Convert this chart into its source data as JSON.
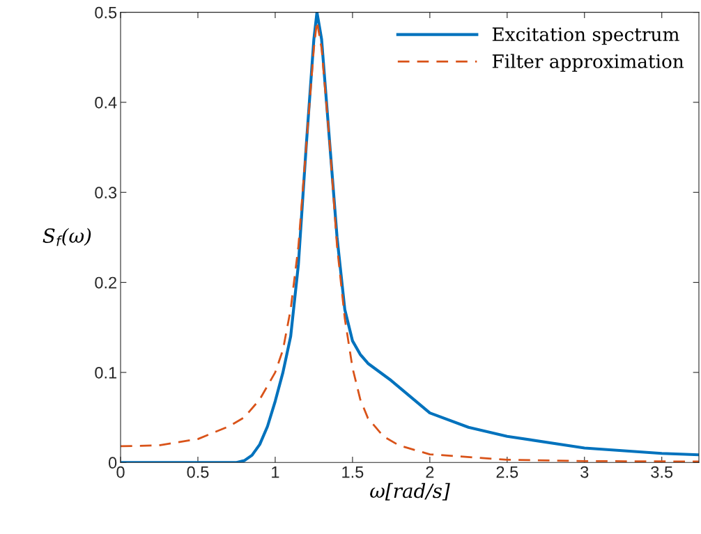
{
  "chart_data": {
    "type": "line",
    "xlabel": "ω[rad/s]",
    "ylabel": "S$_{f}$(ω)",
    "xlim": [
      0,
      3.74
    ],
    "ylim": [
      0,
      0.5
    ],
    "xticks": [
      0,
      0.5,
      1,
      1.5,
      2,
      2.5,
      3,
      3.5
    ],
    "yticks": [
      0,
      0.1,
      0.2,
      0.3,
      0.4,
      0.5
    ],
    "grid": false,
    "legend": "top right",
    "series": [
      {
        "name": "Excitation spectrum",
        "color": "#0072bd",
        "line_style": "solid",
        "x": [
          0,
          0.5,
          0.75,
          0.8,
          0.85,
          0.9,
          0.95,
          1.0,
          1.05,
          1.1,
          1.15,
          1.2,
          1.25,
          1.27,
          1.3,
          1.35,
          1.4,
          1.45,
          1.5,
          1.55,
          1.6,
          1.75,
          2.0,
          2.25,
          2.5,
          3.0,
          3.5,
          3.74
        ],
        "values": [
          0,
          0,
          0,
          0.002,
          0.008,
          0.02,
          0.04,
          0.068,
          0.1,
          0.14,
          0.22,
          0.35,
          0.47,
          0.5,
          0.47,
          0.36,
          0.25,
          0.17,
          0.135,
          0.12,
          0.11,
          0.091,
          0.055,
          0.039,
          0.029,
          0.016,
          0.01,
          0.0085
        ]
      },
      {
        "name": "Filter approximation",
        "color": "#d95319",
        "line_style": "dashed",
        "x": [
          0,
          0.25,
          0.5,
          0.7,
          0.8,
          0.9,
          1.0,
          1.05,
          1.1,
          1.15,
          1.2,
          1.25,
          1.27,
          1.3,
          1.35,
          1.4,
          1.45,
          1.5,
          1.55,
          1.6,
          1.7,
          1.8,
          2.0,
          2.5,
          3.0,
          3.74
        ],
        "values": [
          0.018,
          0.019,
          0.026,
          0.04,
          0.05,
          0.07,
          0.1,
          0.125,
          0.17,
          0.24,
          0.35,
          0.46,
          0.49,
          0.46,
          0.36,
          0.24,
          0.16,
          0.105,
          0.07,
          0.049,
          0.029,
          0.019,
          0.009,
          0.003,
          0.0015,
          0.001
        ]
      }
    ]
  }
}
